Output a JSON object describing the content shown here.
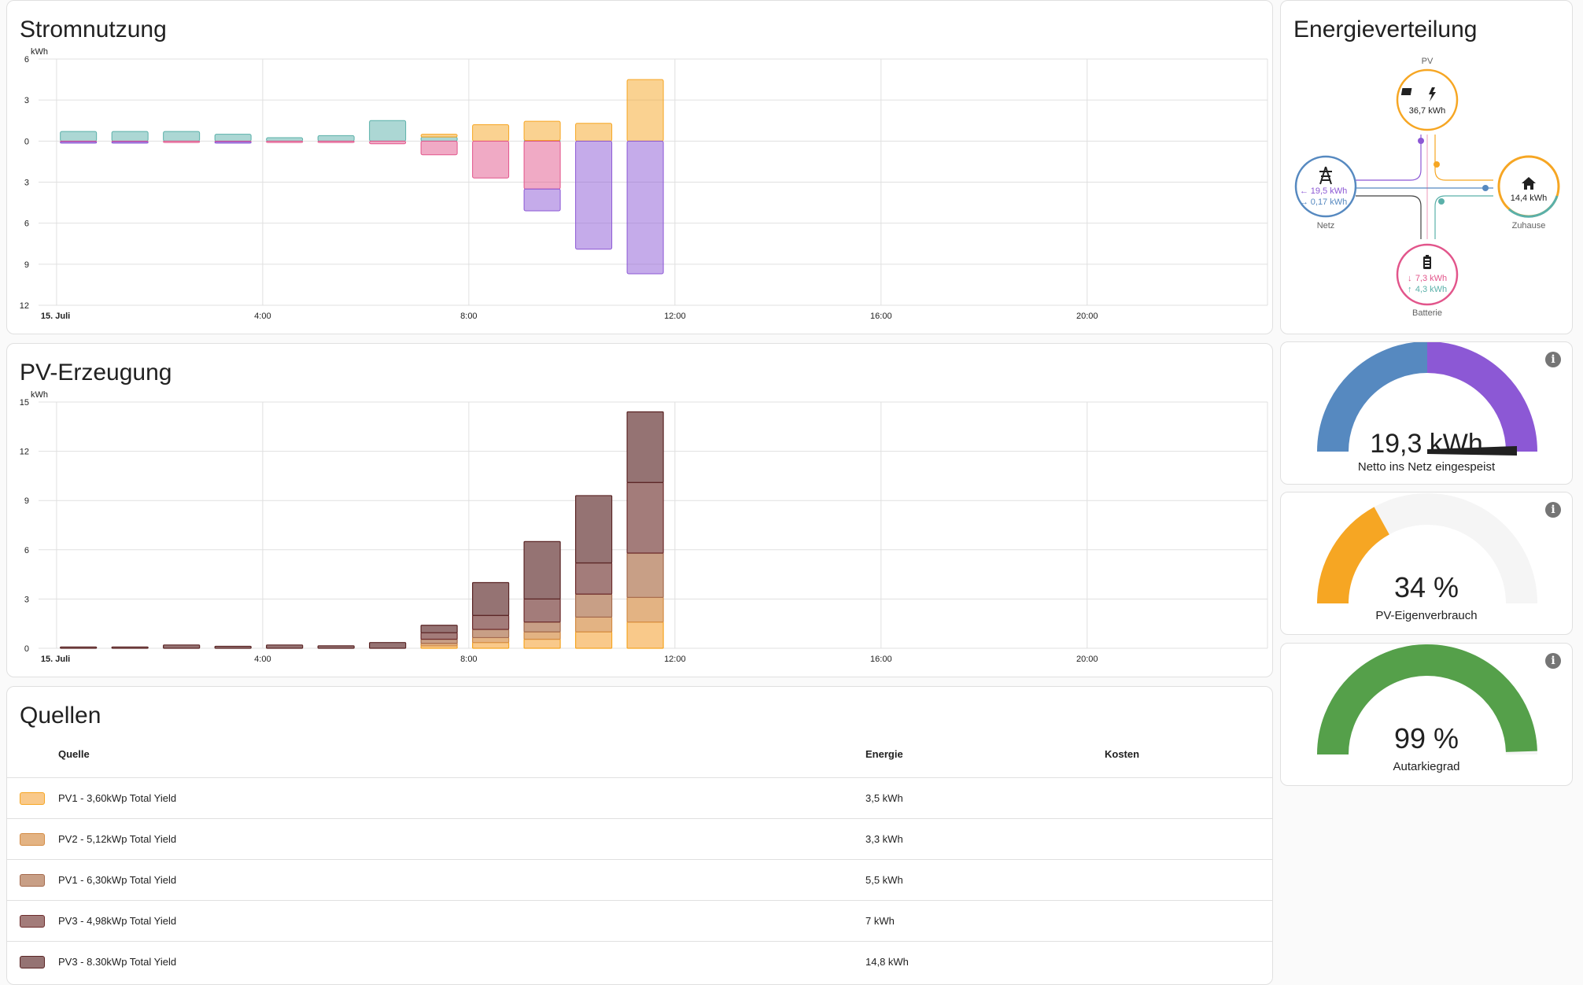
{
  "usage_card": {
    "title": "Stromnutzung",
    "chart_data": {
      "type": "bar",
      "unit": "kWh",
      "y_ticks_labels": [
        "6",
        "3",
        "0",
        "3",
        "6",
        "9",
        "12"
      ],
      "y_tick_values": [
        6,
        3,
        0,
        -3,
        -6,
        -9,
        -12
      ],
      "ylim": [
        -12,
        6
      ],
      "x_tick_labels": [
        "15. Juli",
        "4:00",
        "8:00",
        "12:00",
        "16:00",
        "20:00"
      ],
      "x_tick_hours": [
        0,
        4,
        8,
        12,
        16,
        20
      ],
      "xlim": [
        -0.35,
        23.5
      ],
      "hours": [
        0,
        1,
        2,
        3,
        4,
        5,
        6,
        7,
        8,
        9,
        10,
        11
      ],
      "series": [
        {
          "name": "Netz",
          "color": "#5ab0a9",
          "positive": [
            0.7,
            0.7,
            0.7,
            0.5,
            0.25,
            0.4,
            1.5,
            0.3,
            0,
            0.05,
            0,
            0
          ],
          "negative": [
            0,
            0,
            0,
            0,
            0,
            0,
            0,
            0,
            0,
            0,
            0,
            0
          ]
        },
        {
          "name": "PV",
          "color": "#f6a623",
          "positive": [
            0,
            0,
            0,
            0,
            0,
            0,
            0,
            0.2,
            1.2,
            1.4,
            1.3,
            4.5
          ],
          "negative": [
            0,
            0,
            0,
            0,
            0,
            0,
            0,
            0,
            0,
            0,
            0,
            0
          ]
        },
        {
          "name": "Batterie laden",
          "color": "#e2558b",
          "positive": [
            0,
            0,
            0,
            0,
            0,
            0,
            0,
            0,
            0,
            0,
            0,
            0
          ],
          "negative": [
            0.05,
            0.05,
            0.1,
            0.05,
            0.1,
            0.1,
            0.2,
            1.0,
            2.7,
            3.5,
            0,
            0
          ]
        },
        {
          "name": "Netz einspeisen",
          "color": "#8c58d5",
          "positive": [
            0,
            0,
            0,
            0,
            0,
            0,
            0,
            0,
            0,
            0,
            0,
            0
          ],
          "negative": [
            0.1,
            0.1,
            0,
            0.1,
            0,
            0,
            0,
            0,
            0,
            1.6,
            7.9,
            9.7
          ]
        }
      ],
      "grid": true
    }
  },
  "pv_card": {
    "title": "PV-Erzeugung",
    "chart_data": {
      "type": "bar",
      "unit": "kWh",
      "y_ticks_labels": [
        "15",
        "12",
        "9",
        "6",
        "3",
        "0"
      ],
      "y_tick_values": [
        15,
        12,
        9,
        6,
        3,
        0
      ],
      "ylim": [
        0,
        15
      ],
      "x_tick_labels": [
        "15. Juli",
        "4:00",
        "8:00",
        "12:00",
        "16:00",
        "20:00"
      ],
      "x_tick_hours": [
        0,
        4,
        8,
        12,
        16,
        20
      ],
      "xlim": [
        -0.35,
        23.5
      ],
      "hours": [
        0,
        1,
        2,
        3,
        4,
        5,
        6,
        7,
        8,
        9,
        10,
        11
      ],
      "series": [
        {
          "name": "PV1 - 3,60kWp Total Yield",
          "color": "#f9c98a",
          "stroke": "#f6a623",
          "values": [
            0,
            0,
            0,
            0,
            0,
            0,
            0,
            0.15,
            0.35,
            0.55,
            1.0,
            1.6
          ]
        },
        {
          "name": "PV2 - 5,12kWp Total Yield",
          "color": "#e3b383",
          "stroke": "#d48c45",
          "values": [
            0,
            0,
            0,
            0,
            0,
            0,
            0,
            0.15,
            0.3,
            0.45,
            0.9,
            1.5
          ]
        },
        {
          "name": "PV1 - 6,30kWp Total Yield",
          "color": "#c89f86",
          "stroke": "#a56b4e",
          "values": [
            0,
            0,
            0,
            0,
            0,
            0,
            0,
            0.25,
            0.5,
            0.6,
            1.4,
            2.7
          ]
        },
        {
          "name": "PV3 - 4,98kWp Total Yield",
          "color": "#a37c7a",
          "stroke": "#6e2d2d",
          "values": [
            0,
            0,
            0,
            0,
            0,
            0,
            0,
            0.4,
            0.85,
            1.4,
            1.9,
            4.3
          ]
        },
        {
          "name": "PV3 - 8.30kWp Total Yield",
          "color": "#957373",
          "stroke": "#5b2525",
          "values": [
            0.08,
            0.08,
            0.2,
            0.12,
            0.2,
            0.15,
            0.35,
            0.45,
            2.0,
            3.5,
            4.1,
            4.3
          ]
        }
      ],
      "grid": true
    }
  },
  "sources_card": {
    "title": "Quellen",
    "headers": {
      "source": "Quelle",
      "energy": "Energie",
      "cost": "Kosten"
    },
    "rows": [
      {
        "name": "PV1 - 3,60kWp Total Yield",
        "energy": "3,5 kWh",
        "color": "#f9c98a",
        "stroke": "#f6a623"
      },
      {
        "name": "PV2 - 5,12kWp Total Yield",
        "energy": "3,3 kWh",
        "color": "#e3b383",
        "stroke": "#d48c45"
      },
      {
        "name": "PV1 - 6,30kWp Total Yield",
        "energy": "5,5 kWh",
        "color": "#c89f86",
        "stroke": "#a56b4e"
      },
      {
        "name": "PV3 - 4,98kWp Total Yield",
        "energy": "7 kWh",
        "color": "#a37c7a",
        "stroke": "#6e2d2d"
      },
      {
        "name": "PV3 - 8.30kWp Total Yield",
        "energy": "14,8 kWh",
        "color": "#957373",
        "stroke": "#5b2525"
      }
    ]
  },
  "distribution_card": {
    "title": "Energieverteilung",
    "pv": {
      "label": "PV",
      "value": "36,7 kWh",
      "icon": "solar-power-icon",
      "color": "#f6a623"
    },
    "grid": {
      "label": "Netz",
      "import": "19,5 kWh",
      "export": "0,17 kWh",
      "icon": "transmission-tower-icon",
      "color": "#5689c0",
      "import_color": "#8c58d5"
    },
    "home": {
      "label": "Zuhause",
      "value": "14,4 kWh",
      "icon": "home-icon",
      "color": "#f6a623"
    },
    "battery": {
      "label": "Batterie",
      "in": "7,3 kWh",
      "out": "4,3 kWh",
      "icon": "battery-icon",
      "color": "#e2558b",
      "out_color": "#5ab0a9"
    }
  },
  "gauges": [
    {
      "value": "19,3 kWh",
      "label": "Netto ins Netz eingespeist",
      "icon": "info-icon",
      "fraction_marker": 0.99,
      "colors": [
        "#5689c0",
        "#8c58d5"
      ]
    },
    {
      "value": "34 %",
      "label": "PV-Eigenverbrauch",
      "icon": "info-icon",
      "fraction": 0.34,
      "color": "#f6a623"
    },
    {
      "value": "99 %",
      "label": "Autarkiegrad",
      "icon": "info-icon",
      "fraction": 0.99,
      "color": "#55a04a"
    }
  ]
}
